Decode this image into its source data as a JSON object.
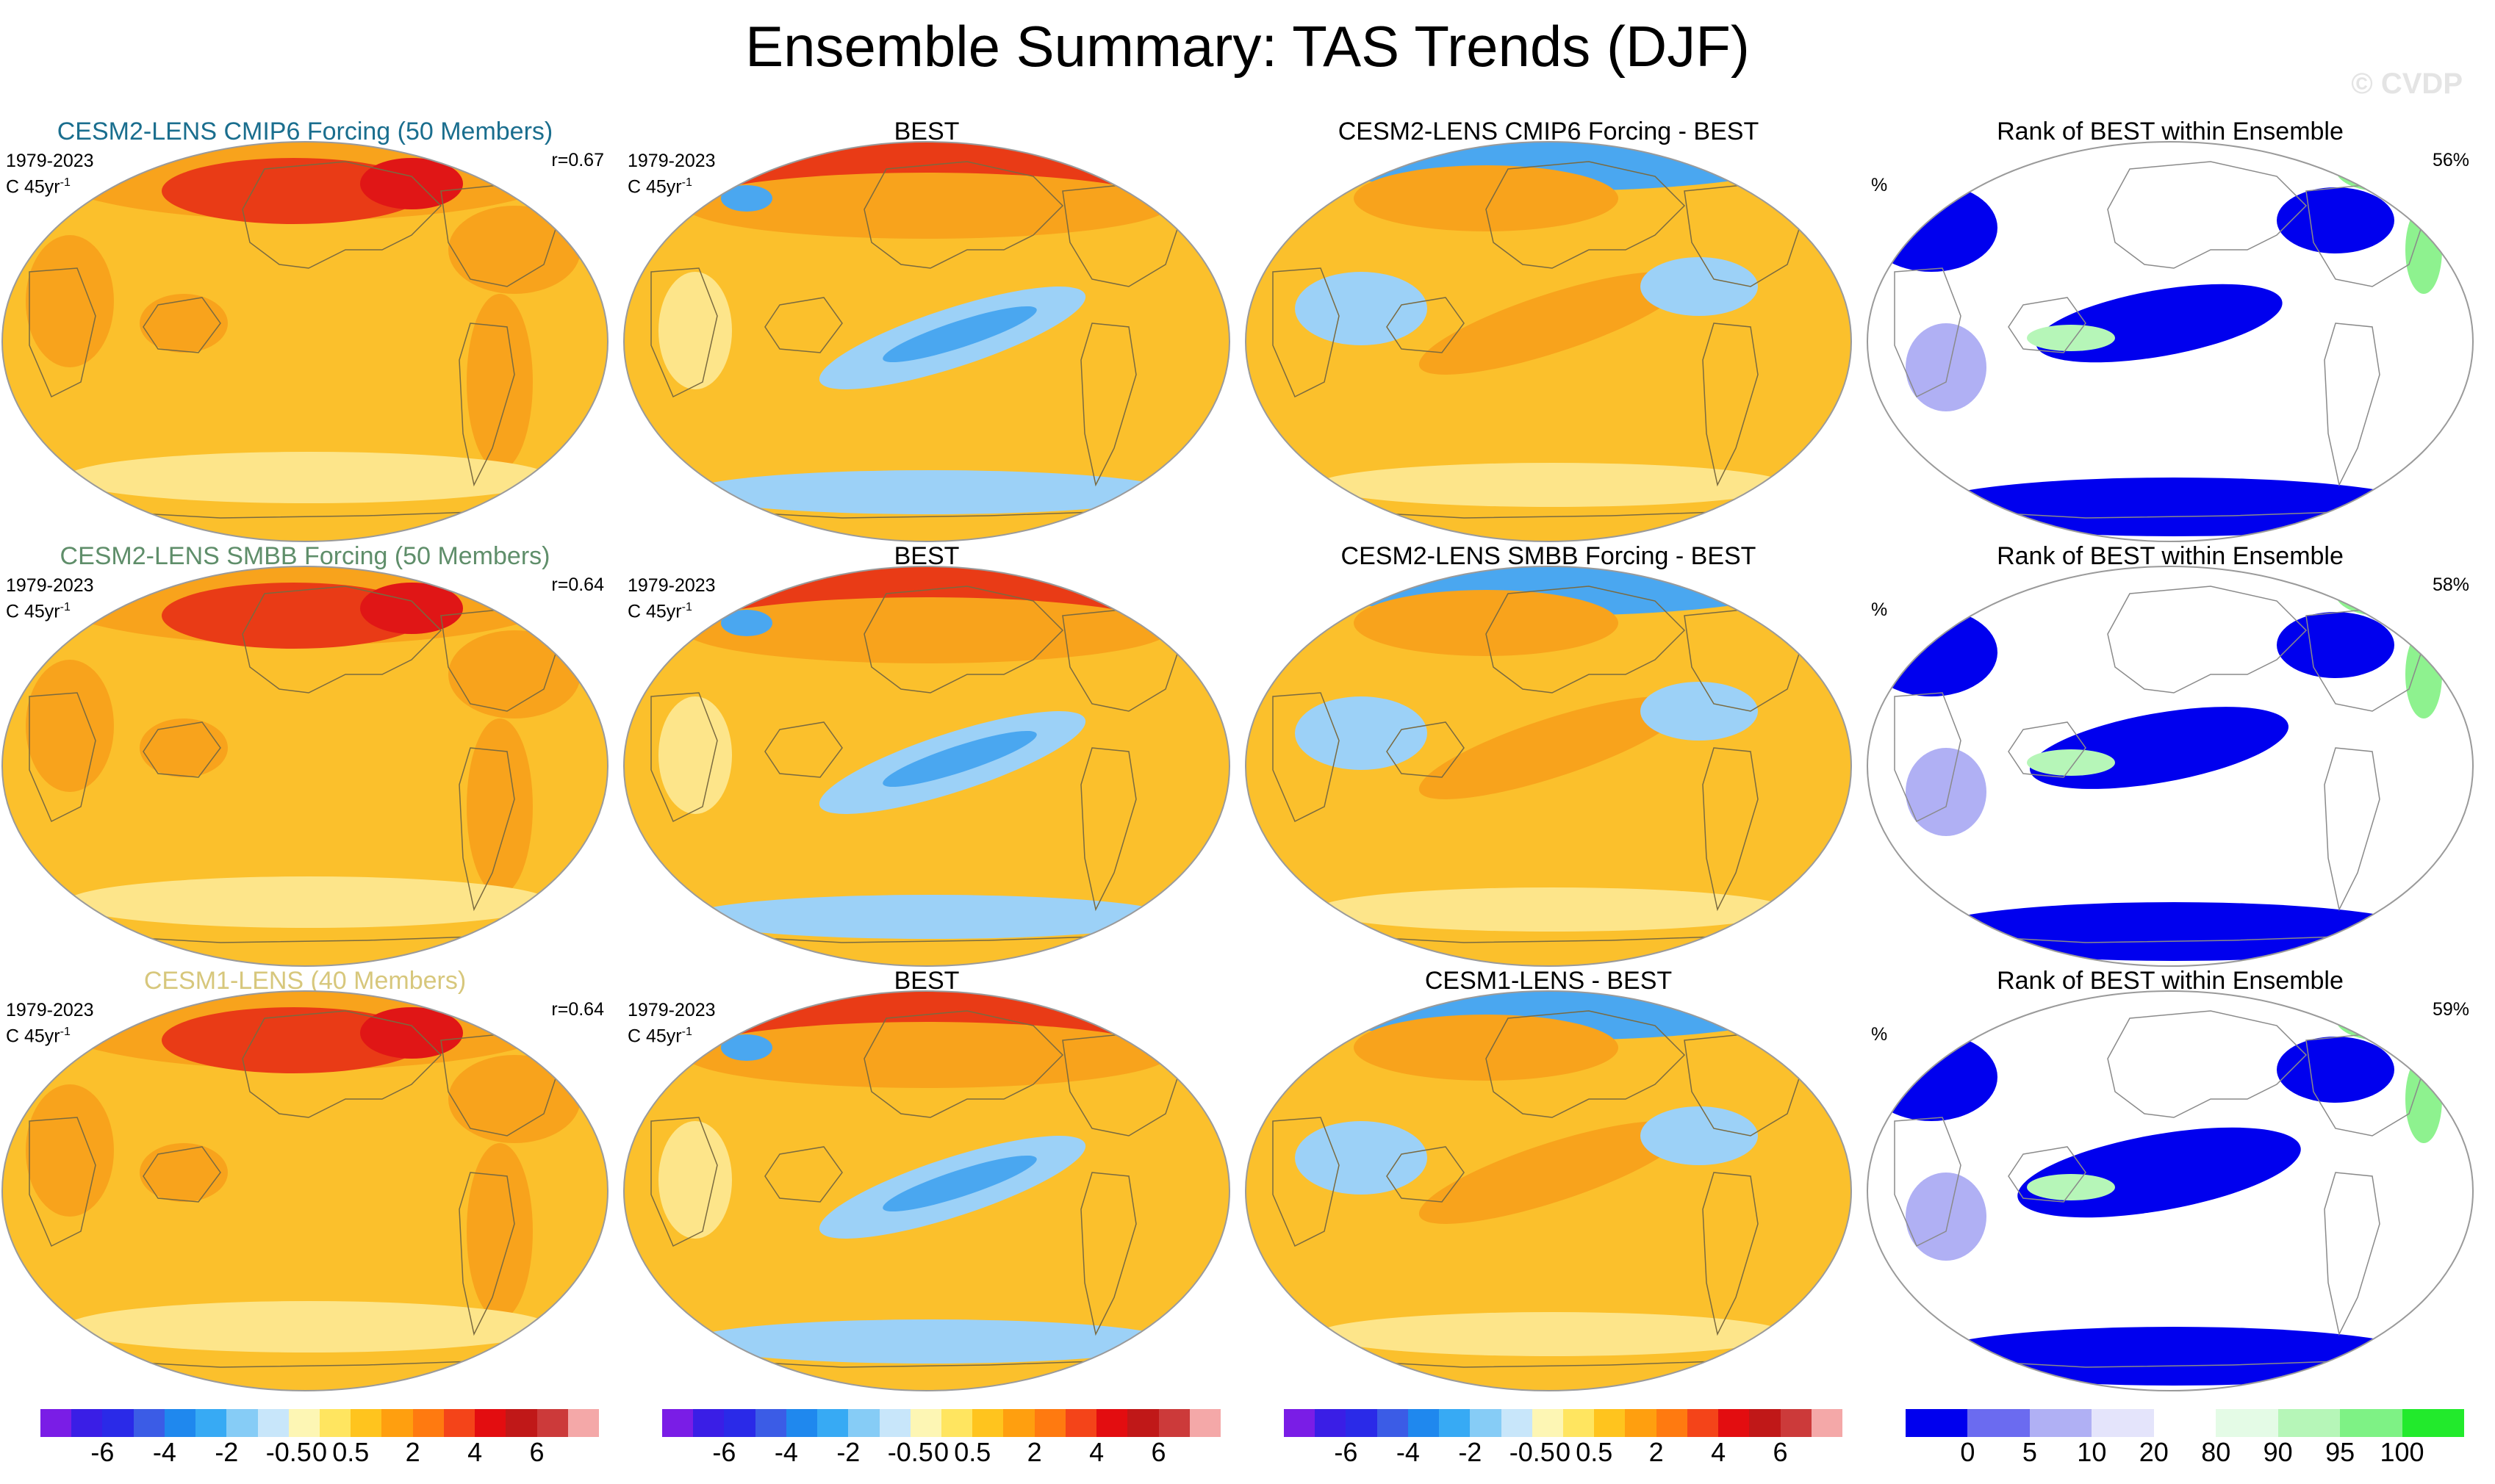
{
  "title": "Ensemble Summary: TAS Trends (DJF)",
  "watermark": "© CVDP",
  "colors": {
    "diverging": [
      "#7a1de6",
      "#3a1ee6",
      "#2a2ae8",
      "#3b5ce6",
      "#1f88ee",
      "#37aaf4",
      "#86ccf6",
      "#c8e6fa",
      "#fdf6b4",
      "#ffe560",
      "#ffc41e",
      "#ff9f0f",
      "#ff7a10",
      "#f44419",
      "#e30d10",
      "#c01818",
      "#cc3a3a",
      "#f4a8a8"
    ],
    "rank": [
      "#0000ee",
      "#6b6bf0",
      "#b0b0f4",
      "#e4e4fb",
      "#ffffff",
      "#e4fbe6",
      "#b6f6b8",
      "#7ef285",
      "#22ea2c"
    ],
    "ocean_warm": "#fbc02c",
    "land_warm": "#f8a31c",
    "hot": "#e93b16",
    "cool": "#9cd1f7",
    "cold": "#4aa7f0",
    "rank_blue": "#0000ee",
    "rank_green": "#8ef28f",
    "model_title_1": "#1a6e8e",
    "model_title_2": "#5f8e6a",
    "model_title_3": "#d7c77c"
  },
  "panels": [
    {
      "id": "p11",
      "title": "CESM2-LENS CMIP6 Forcing (50 Members)",
      "period": "1979-2023",
      "units": "C 45yr",
      "units_sup": "-1",
      "stat": "r=0.67",
      "type": "model",
      "pattern": "model"
    },
    {
      "id": "p12",
      "title": "BEST",
      "period": "1979-2023",
      "units": "C 45yr",
      "units_sup": "-1",
      "stat": "",
      "type": "obs",
      "pattern": "obs"
    },
    {
      "id": "p13",
      "title": "CESM2-LENS CMIP6 Forcing - BEST",
      "period": "",
      "units": "",
      "units_sup": "",
      "stat": "",
      "type": "diff",
      "pattern": "diff"
    },
    {
      "id": "p14",
      "title": "Rank of BEST within Ensemble",
      "period": "",
      "units": "%",
      "units_sup": "",
      "stat": "56%",
      "type": "rank",
      "pattern": "rank1"
    },
    {
      "id": "p21",
      "title": "CESM2-LENS SMBB Forcing (50 Members)",
      "period": "1979-2023",
      "units": "C 45yr",
      "units_sup": "-1",
      "stat": "r=0.64",
      "type": "model",
      "pattern": "model"
    },
    {
      "id": "p22",
      "title": "BEST",
      "period": "1979-2023",
      "units": "C 45yr",
      "units_sup": "-1",
      "stat": "",
      "type": "obs",
      "pattern": "obs"
    },
    {
      "id": "p23",
      "title": "CESM2-LENS SMBB Forcing - BEST",
      "period": "",
      "units": "",
      "units_sup": "",
      "stat": "",
      "type": "diff",
      "pattern": "diff"
    },
    {
      "id": "p24",
      "title": "Rank of BEST within Ensemble",
      "period": "",
      "units": "%",
      "units_sup": "",
      "stat": "58%",
      "type": "rank",
      "pattern": "rank2"
    },
    {
      "id": "p31",
      "title": "CESM1-LENS (40 Members)",
      "period": "1979-2023",
      "units": "C 45yr",
      "units_sup": "-1",
      "stat": "r=0.64",
      "type": "model",
      "pattern": "model"
    },
    {
      "id": "p32",
      "title": "BEST",
      "period": "1979-2023",
      "units": "C 45yr",
      "units_sup": "-1",
      "stat": "",
      "type": "obs",
      "pattern": "obs"
    },
    {
      "id": "p33",
      "title": "CESM1-LENS - BEST",
      "period": "",
      "units": "",
      "units_sup": "",
      "stat": "",
      "type": "diff",
      "pattern": "diff"
    },
    {
      "id": "p34",
      "title": "Rank of BEST within Ensemble",
      "period": "",
      "units": "%",
      "units_sup": "",
      "stat": "59%",
      "type": "rank",
      "pattern": "rank3"
    }
  ],
  "colorbars": [
    {
      "id": "cb1",
      "kind": "diverging",
      "labels": [
        "-6",
        "-4",
        "-2",
        "-0.5",
        "0",
        "0.5",
        "2",
        "4",
        "6"
      ]
    },
    {
      "id": "cb2",
      "kind": "diverging",
      "labels": [
        "-6",
        "-4",
        "-2",
        "-0.5",
        "0",
        "0.5",
        "2",
        "4",
        "6"
      ]
    },
    {
      "id": "cb3",
      "kind": "diverging",
      "labels": [
        "-6",
        "-4",
        "-2",
        "-0.5",
        "0",
        "0.5",
        "2",
        "4",
        "6"
      ]
    },
    {
      "id": "cb4",
      "kind": "rank",
      "labels": [
        "0",
        "5",
        "10",
        "20",
        "80",
        "90",
        "95",
        "100"
      ]
    }
  ]
}
